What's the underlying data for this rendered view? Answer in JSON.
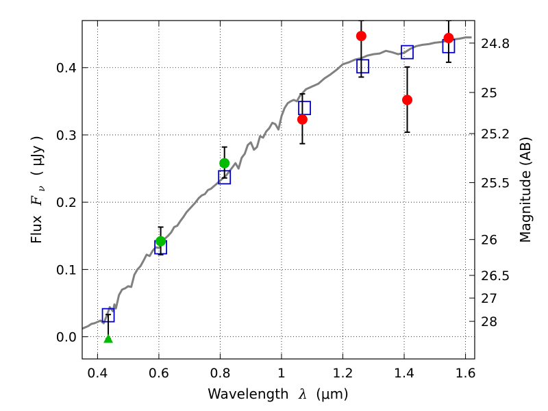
{
  "chart_data": {
    "type": "scatter",
    "xlabel": "Wavelength",
    "xlabel_symbol": "λ",
    "xlabel_unit": "(μm)",
    "ylabel": "Flux",
    "ylabel_symbol": "F",
    "ylabel_subscript": "ν",
    "ylabel_unit": "( μJy )",
    "y2label": "Magnitude (AB)",
    "xlim": [
      0.35,
      1.63
    ],
    "ylim": [
      -0.033,
      0.47
    ],
    "grid": true,
    "x_ticks": [
      0.4,
      0.6,
      0.8,
      1.0,
      1.2,
      1.4,
      1.6
    ],
    "x_tick_labels": [
      "0.4",
      "0.6",
      "0.8",
      "1",
      "1.2",
      "1.4",
      "1.6"
    ],
    "y_ticks": [
      0.0,
      0.1,
      0.2,
      0.3,
      0.4
    ],
    "y_tick_labels": [
      "0.0",
      "0.1",
      "0.2",
      "0.3",
      "0.4"
    ],
    "y2_ticks": [
      {
        "flux": 0.4365,
        "label": "24.8"
      },
      {
        "flux": 0.3631,
        "label": "25"
      },
      {
        "flux": 0.302,
        "label": "25.2"
      },
      {
        "flux": 0.2291,
        "label": "25.5"
      },
      {
        "flux": 0.1445,
        "label": "26"
      },
      {
        "flux": 0.0912,
        "label": "26.5"
      },
      {
        "flux": 0.0575,
        "label": "27"
      },
      {
        "flux": 0.0229,
        "label": "28"
      }
    ],
    "series": [
      {
        "name": "model-spectrum",
        "kind": "line",
        "color": "#808080",
        "x": [
          0.35,
          0.37,
          0.38,
          0.39,
          0.4,
          0.41,
          0.42,
          0.43,
          0.44,
          0.45,
          0.455,
          0.46,
          0.47,
          0.48,
          0.49,
          0.5,
          0.51,
          0.52,
          0.53,
          0.54,
          0.55,
          0.56,
          0.57,
          0.58,
          0.59,
          0.6,
          0.61,
          0.62,
          0.63,
          0.64,
          0.65,
          0.66,
          0.67,
          0.68,
          0.69,
          0.7,
          0.71,
          0.72,
          0.73,
          0.74,
          0.75,
          0.76,
          0.77,
          0.78,
          0.79,
          0.8,
          0.81,
          0.82,
          0.83,
          0.84,
          0.85,
          0.86,
          0.87,
          0.88,
          0.89,
          0.9,
          0.91,
          0.92,
          0.93,
          0.94,
          0.95,
          0.96,
          0.97,
          0.98,
          0.99,
          1.0,
          1.01,
          1.02,
          1.03,
          1.04,
          1.05,
          1.06,
          1.07,
          1.08,
          1.09,
          1.1,
          1.12,
          1.14,
          1.16,
          1.18,
          1.2,
          1.22,
          1.24,
          1.26,
          1.28,
          1.3,
          1.32,
          1.34,
          1.36,
          1.38,
          1.4,
          1.42,
          1.44,
          1.46,
          1.48,
          1.5,
          1.52,
          1.54,
          1.56,
          1.58,
          1.6,
          1.62
        ],
        "y": [
          0.012,
          0.016,
          0.019,
          0.02,
          0.022,
          0.024,
          0.02,
          0.031,
          0.044,
          0.038,
          0.048,
          0.042,
          0.062,
          0.07,
          0.072,
          0.075,
          0.074,
          0.092,
          0.1,
          0.105,
          0.113,
          0.122,
          0.12,
          0.128,
          0.133,
          0.132,
          0.138,
          0.146,
          0.15,
          0.155,
          0.163,
          0.165,
          0.172,
          0.178,
          0.185,
          0.19,
          0.195,
          0.2,
          0.206,
          0.21,
          0.212,
          0.218,
          0.22,
          0.224,
          0.228,
          0.232,
          0.236,
          0.24,
          0.246,
          0.252,
          0.258,
          0.25,
          0.266,
          0.272,
          0.285,
          0.289,
          0.278,
          0.282,
          0.298,
          0.296,
          0.305,
          0.31,
          0.318,
          0.316,
          0.308,
          0.328,
          0.34,
          0.347,
          0.35,
          0.352,
          0.35,
          0.358,
          0.363,
          0.368,
          0.37,
          0.372,
          0.376,
          0.384,
          0.39,
          0.397,
          0.405,
          0.408,
          0.412,
          0.414,
          0.418,
          0.42,
          0.421,
          0.425,
          0.423,
          0.42,
          0.422,
          0.428,
          0.432,
          0.434,
          0.435,
          0.437,
          0.438,
          0.44,
          0.442,
          0.443,
          0.445,
          0.445
        ]
      },
      {
        "name": "model-bandpass",
        "kind": "marker",
        "marker": "open-square",
        "color": "#0000cc",
        "x": [
          0.435,
          0.606,
          0.814,
          1.075,
          1.265,
          1.41,
          1.545
        ],
        "y": [
          0.032,
          0.133,
          0.237,
          0.34,
          0.402,
          0.423,
          0.432
        ]
      },
      {
        "name": "detections-green",
        "kind": "marker",
        "marker": "filled-circle",
        "color": "#00bb00",
        "x": [
          0.606,
          0.814
        ],
        "y": [
          0.142,
          0.258
        ],
        "yerr": [
          [
            0.122,
            0.163
          ],
          [
            0.236,
            0.282
          ]
        ]
      },
      {
        "name": "upper-limit-green",
        "kind": "marker",
        "marker": "filled-triangle",
        "color": "#00bb00",
        "x": [
          0.435
        ],
        "y": [
          -0.003
        ],
        "yerr": [
          [
            -0.003,
            0.033
          ]
        ]
      },
      {
        "name": "detections-red",
        "kind": "marker",
        "marker": "filled-circle",
        "color": "#ff0000",
        "x": [
          1.068,
          1.26,
          1.41,
          1.545
        ],
        "y": [
          0.323,
          0.447,
          0.352,
          0.444
        ],
        "yerr": [
          [
            0.287,
            0.361
          ],
          [
            0.386,
            0.47
          ],
          [
            0.304,
            0.401
          ],
          [
            0.408,
            0.47
          ]
        ]
      }
    ]
  }
}
